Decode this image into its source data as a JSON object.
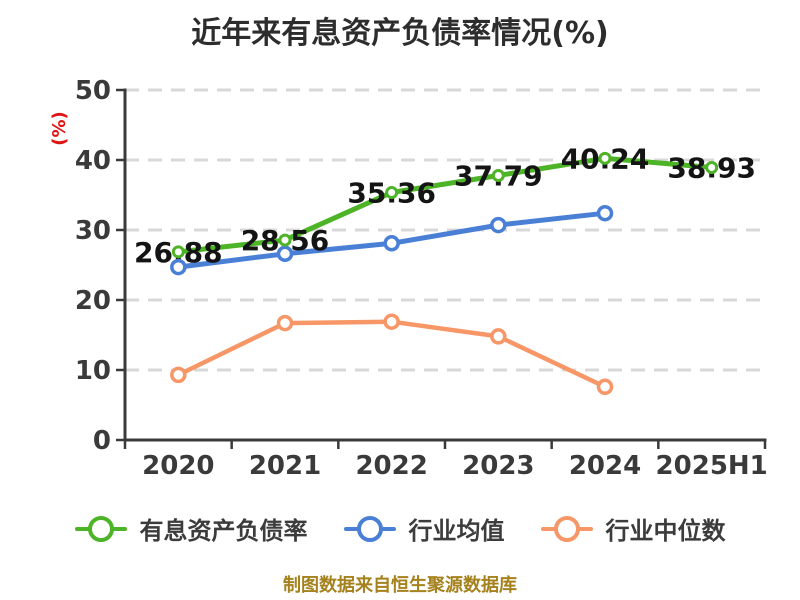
{
  "footer": "制图数据来自恒生聚源数据库",
  "colors": {
    "background": "#ffffff",
    "axis": "#3a3a3a",
    "grid": "#d8d8d8",
    "tick_label": "#3a3a3a",
    "data_label": "#141414",
    "ylabel_red": "#e01212",
    "footer_gold": "#a5821d",
    "legend_text": "#3c3c3c"
  },
  "chart_data": {
    "type": "line",
    "title": "近年来有息资产负债率情况(%)",
    "xlabel": "",
    "ylabel": "(%)",
    "ylim": [
      0,
      50
    ],
    "yticks": [
      0,
      10,
      20,
      30,
      40,
      50
    ],
    "categories": [
      "2020",
      "2021",
      "2022",
      "2023",
      "2024",
      "2025H1"
    ],
    "grid": "horizontal dashed gridlines",
    "legend_position": "bottom",
    "marker_style": "white-filled circle with colored ring",
    "series": [
      {
        "key": "interest-bearing-debt-ratio",
        "name": "有息资产负债率",
        "color": "#4db327",
        "show_labels": true,
        "values": [
          26.88,
          28.56,
          35.36,
          37.79,
          40.24,
          38.93
        ]
      },
      {
        "key": "industry-mean",
        "name": "行业均值",
        "color": "#4a7fd6",
        "show_labels": false,
        "values": [
          24.7,
          26.6,
          28.1,
          30.7,
          32.4,
          null
        ]
      },
      {
        "key": "industry-median",
        "name": "行业中位数",
        "color": "#f79767",
        "show_labels": false,
        "values": [
          9.3,
          16.7,
          16.9,
          14.8,
          7.6,
          null
        ]
      }
    ]
  }
}
